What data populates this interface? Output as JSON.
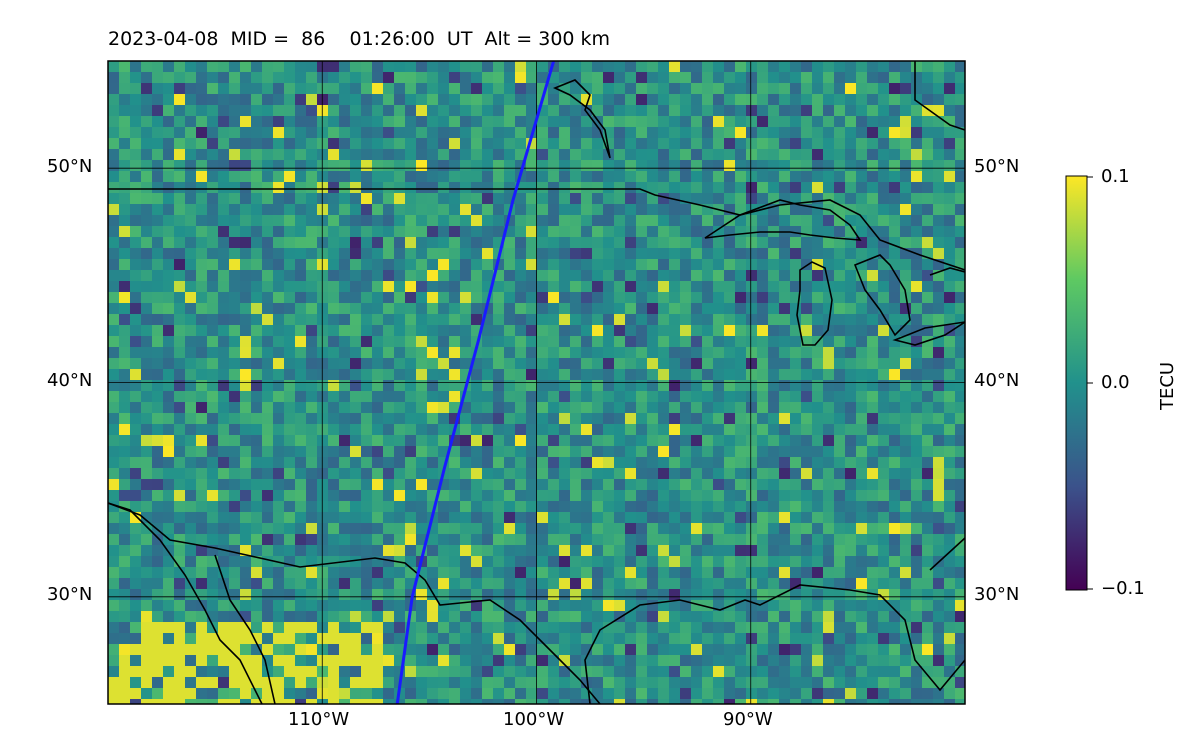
{
  "title": "2023-04-08  MID =  86    01:26:00  UT  Alt = 300 km",
  "map": {
    "lon_range": [
      -120,
      -80
    ],
    "lat_range": [
      25,
      55
    ],
    "lat_gridlines": [
      30,
      40,
      50
    ],
    "lon_gridlines": [
      -110,
      -100,
      -90
    ],
    "lat_labels": [
      "30°N",
      "40°N",
      "50°N"
    ],
    "lon_labels": [
      "110°W",
      "100°W",
      "90°W"
    ],
    "track_color": "#1a1aff",
    "track_points": [
      [
        -106.5,
        25.0
      ],
      [
        -105.8,
        30.0
      ],
      [
        -104.3,
        36.0
      ],
      [
        -102.7,
        42.0
      ],
      [
        -101.1,
        48.5
      ],
      [
        -99.2,
        55.0
      ]
    ],
    "background_field": "differential TEC (viridis colormap)"
  },
  "colorbar": {
    "label": "TECU",
    "min": -0.1,
    "max": 0.1,
    "ticks": [
      "0.1",
      "0.0",
      "−0.1"
    ],
    "colormap": [
      "#440154",
      "#3b528b",
      "#21918c",
      "#5ec962",
      "#fde725"
    ]
  }
}
